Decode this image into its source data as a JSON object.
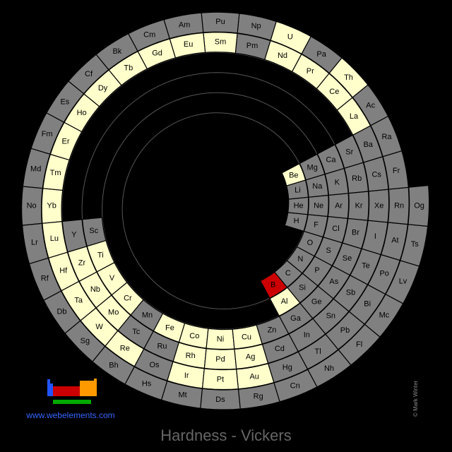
{
  "title": "Hardness - Vickers",
  "website": "www.webelements.com",
  "credit": "© Mark Winter",
  "periods": [
    [
      {
        "symbol": "H",
        "color": "#808080"
      },
      {
        "symbol": "He",
        "color": "#808080"
      }
    ],
    [
      {
        "symbol": "Li",
        "color": "#808080"
      },
      {
        "symbol": "Be",
        "color": "#ffffcc"
      },
      {
        "symbol": "B",
        "color": "#cc0000"
      },
      {
        "symbol": "C",
        "color": "#808080"
      },
      {
        "symbol": "N",
        "color": "#808080"
      },
      {
        "symbol": "O",
        "color": "#808080"
      },
      {
        "symbol": "F",
        "color": "#808080"
      },
      {
        "symbol": "Ne",
        "color": "#808080"
      }
    ],
    [
      {
        "symbol": "Na",
        "color": "#808080"
      },
      {
        "symbol": "Mg",
        "color": "#808080"
      },
      {
        "symbol": "Al",
        "color": "#ffffcc"
      },
      {
        "symbol": "Si",
        "color": "#808080"
      },
      {
        "symbol": "P",
        "color": "#808080"
      },
      {
        "symbol": "S",
        "color": "#808080"
      },
      {
        "symbol": "Cl",
        "color": "#808080"
      },
      {
        "symbol": "Ar",
        "color": "#808080"
      }
    ],
    [
      {
        "symbol": "K",
        "color": "#808080"
      },
      {
        "symbol": "Ca",
        "color": "#808080"
      },
      {
        "symbol": "Sc",
        "color": "#808080"
      },
      {
        "symbol": "Ti",
        "color": "#ffffcc"
      },
      {
        "symbol": "V",
        "color": "#ffffcc"
      },
      {
        "symbol": "Cr",
        "color": "#ffffcc"
      },
      {
        "symbol": "Mn",
        "color": "#808080"
      },
      {
        "symbol": "Fe",
        "color": "#ffffcc"
      },
      {
        "symbol": "Co",
        "color": "#ffffcc"
      },
      {
        "symbol": "Ni",
        "color": "#ffffcc"
      },
      {
        "symbol": "Cu",
        "color": "#ffffcc"
      },
      {
        "symbol": "Zn",
        "color": "#808080"
      },
      {
        "symbol": "Ga",
        "color": "#808080"
      },
      {
        "symbol": "Ge",
        "color": "#808080"
      },
      {
        "symbol": "As",
        "color": "#808080"
      },
      {
        "symbol": "Se",
        "color": "#808080"
      },
      {
        "symbol": "Br",
        "color": "#808080"
      },
      {
        "symbol": "Kr",
        "color": "#808080"
      }
    ],
    [
      {
        "symbol": "Rb",
        "color": "#808080"
      },
      {
        "symbol": "Sr",
        "color": "#808080"
      },
      {
        "symbol": "Y",
        "color": "#808080"
      },
      {
        "symbol": "Zr",
        "color": "#ffffcc"
      },
      {
        "symbol": "Nb",
        "color": "#ffffcc"
      },
      {
        "symbol": "Mo",
        "color": "#ffffcc"
      },
      {
        "symbol": "Tc",
        "color": "#808080"
      },
      {
        "symbol": "Ru",
        "color": "#808080"
      },
      {
        "symbol": "Rh",
        "color": "#ffffcc"
      },
      {
        "symbol": "Pd",
        "color": "#ffffcc"
      },
      {
        "symbol": "Ag",
        "color": "#ffffcc"
      },
      {
        "symbol": "Cd",
        "color": "#808080"
      },
      {
        "symbol": "In",
        "color": "#808080"
      },
      {
        "symbol": "Sn",
        "color": "#808080"
      },
      {
        "symbol": "Sb",
        "color": "#808080"
      },
      {
        "symbol": "Te",
        "color": "#808080"
      },
      {
        "symbol": "I",
        "color": "#808080"
      },
      {
        "symbol": "Xe",
        "color": "#808080"
      }
    ],
    [
      {
        "symbol": "Cs",
        "color": "#808080"
      },
      {
        "symbol": "Ba",
        "color": "#808080"
      },
      {
        "symbol": "La",
        "color": "#ffffcc"
      },
      {
        "symbol": "Ce",
        "color": "#ffffcc"
      },
      {
        "symbol": "Pr",
        "color": "#ffffcc"
      },
      {
        "symbol": "Nd",
        "color": "#ffffcc"
      },
      {
        "symbol": "Pm",
        "color": "#808080"
      },
      {
        "symbol": "Sm",
        "color": "#ffffcc"
      },
      {
        "symbol": "Eu",
        "color": "#ffffcc"
      },
      {
        "symbol": "Gd",
        "color": "#ffffcc"
      },
      {
        "symbol": "Tb",
        "color": "#ffffcc"
      },
      {
        "symbol": "Dy",
        "color": "#ffffcc"
      },
      {
        "symbol": "Ho",
        "color": "#ffffcc"
      },
      {
        "symbol": "Er",
        "color": "#ffffcc"
      },
      {
        "symbol": "Tm",
        "color": "#ffffcc"
      },
      {
        "symbol": "Yb",
        "color": "#ffffcc"
      },
      {
        "symbol": "Lu",
        "color": "#ffffcc"
      },
      {
        "symbol": "Hf",
        "color": "#ffffcc"
      },
      {
        "symbol": "Ta",
        "color": "#ffffcc"
      },
      {
        "symbol": "W",
        "color": "#ffffcc"
      },
      {
        "symbol": "Re",
        "color": "#ffffcc"
      },
      {
        "symbol": "Os",
        "color": "#808080"
      },
      {
        "symbol": "Ir",
        "color": "#ffffcc"
      },
      {
        "symbol": "Pt",
        "color": "#ffffcc"
      },
      {
        "symbol": "Au",
        "color": "#ffffcc"
      },
      {
        "symbol": "Hg",
        "color": "#808080"
      },
      {
        "symbol": "Tl",
        "color": "#808080"
      },
      {
        "symbol": "Pb",
        "color": "#808080"
      },
      {
        "symbol": "Bi",
        "color": "#808080"
      },
      {
        "symbol": "Po",
        "color": "#808080"
      },
      {
        "symbol": "At",
        "color": "#808080"
      },
      {
        "symbol": "Rn",
        "color": "#808080"
      }
    ],
    [
      {
        "symbol": "Fr",
        "color": "#808080"
      },
      {
        "symbol": "Ra",
        "color": "#808080"
      },
      {
        "symbol": "Ac",
        "color": "#808080"
      },
      {
        "symbol": "Th",
        "color": "#ffffcc"
      },
      {
        "symbol": "Pa",
        "color": "#808080"
      },
      {
        "symbol": "U",
        "color": "#ffffcc"
      },
      {
        "symbol": "Np",
        "color": "#808080"
      },
      {
        "symbol": "Pu",
        "color": "#808080"
      },
      {
        "symbol": "Am",
        "color": "#808080"
      },
      {
        "symbol": "Cm",
        "color": "#808080"
      },
      {
        "symbol": "Bk",
        "color": "#808080"
      },
      {
        "symbol": "Cf",
        "color": "#808080"
      },
      {
        "symbol": "Es",
        "color": "#808080"
      },
      {
        "symbol": "Fm",
        "color": "#808080"
      },
      {
        "symbol": "Md",
        "color": "#808080"
      },
      {
        "symbol": "No",
        "color": "#808080"
      },
      {
        "symbol": "Lr",
        "color": "#808080"
      },
      {
        "symbol": "Rf",
        "color": "#808080"
      },
      {
        "symbol": "Db",
        "color": "#808080"
      },
      {
        "symbol": "Sg",
        "color": "#808080"
      },
      {
        "symbol": "Bh",
        "color": "#808080"
      },
      {
        "symbol": "Hs",
        "color": "#808080"
      },
      {
        "symbol": "Mt",
        "color": "#808080"
      },
      {
        "symbol": "Ds",
        "color": "#808080"
      },
      {
        "symbol": "Rg",
        "color": "#808080"
      },
      {
        "symbol": "Cn",
        "color": "#808080"
      },
      {
        "symbol": "Nh",
        "color": "#808080"
      },
      {
        "symbol": "Fl",
        "color": "#808080"
      },
      {
        "symbol": "Mc",
        "color": "#808080"
      },
      {
        "symbol": "Lv",
        "color": "#808080"
      },
      {
        "symbol": "Ts",
        "color": "#808080"
      },
      {
        "symbol": "Og",
        "color": "#808080"
      }
    ]
  ]
}
